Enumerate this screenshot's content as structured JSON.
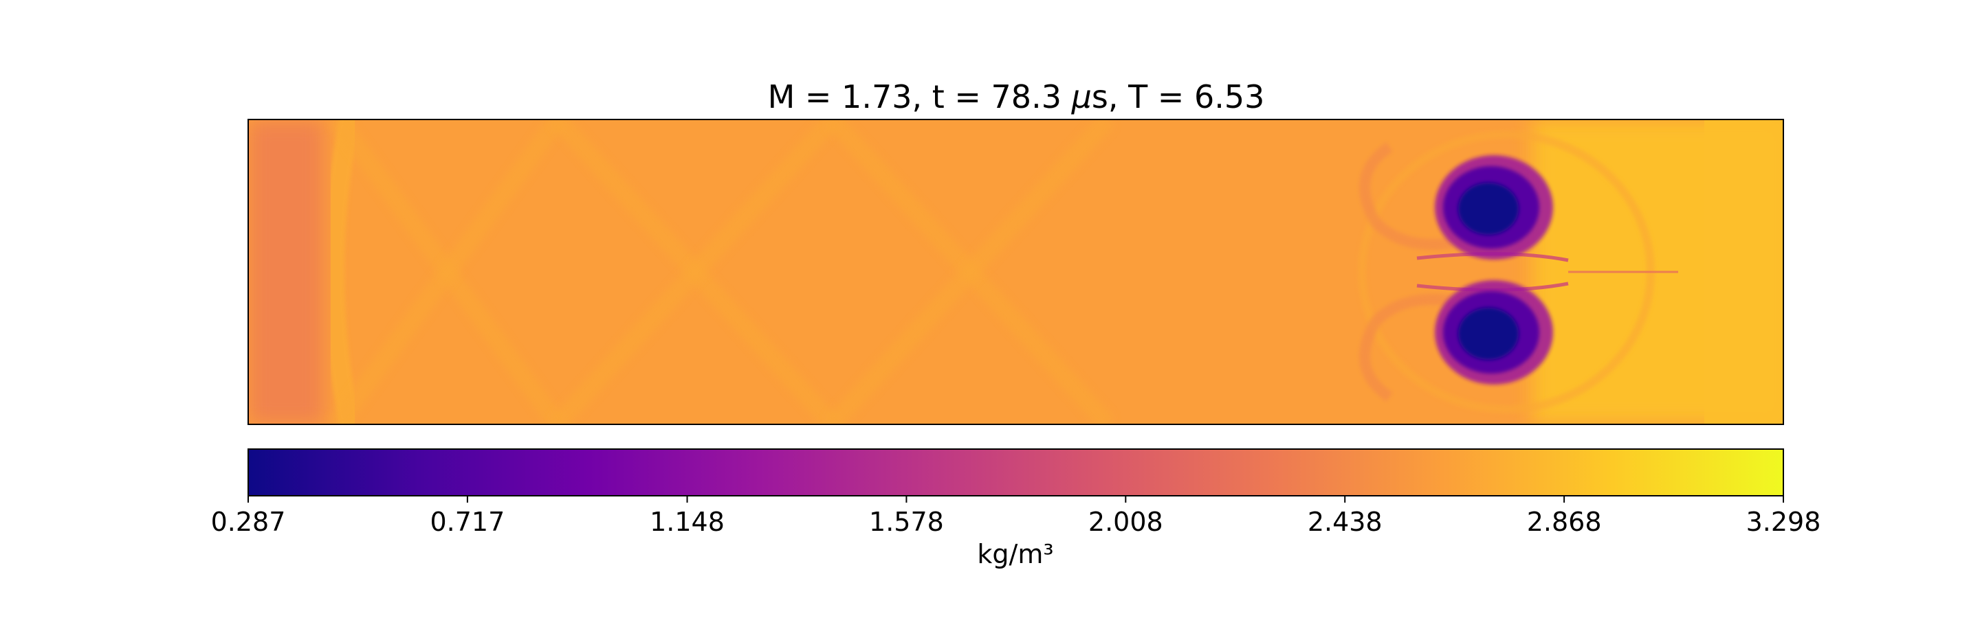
{
  "chart_data": {
    "type": "heatmap",
    "title": "M = 1.73, t = 78.3 μs, T = 6.53",
    "title_parts": {
      "pre": "M = 1.73, t = 78.3 ",
      "mu": "μ",
      "post": "s, T = 6.53"
    },
    "colormap": "plasma",
    "colormap_stops": [
      "#0d0887",
      "#46039f",
      "#7201a8",
      "#9c179e",
      "#bd3786",
      "#d8576b",
      "#ed7953",
      "#fb9f3a",
      "#fdca26",
      "#f0f921"
    ],
    "value_range": [
      0.287,
      3.298
    ],
    "ambient_value": 2.62,
    "colorbar": {
      "ticks": [
        "0.287",
        "0.717",
        "1.148",
        "1.578",
        "2.008",
        "2.438",
        "2.868",
        "3.298"
      ],
      "tick_values": [
        0.287,
        0.717,
        1.148,
        1.578,
        2.008,
        2.438,
        2.868,
        3.298
      ],
      "label": "kg/m³",
      "orientation": "horizontal"
    },
    "features": {
      "vortex_core_min": 0.3,
      "vortex_ring": 1.3,
      "shear_layer": 1.9,
      "upstream_band": 2.38,
      "downstream_band": 2.88
    }
  }
}
